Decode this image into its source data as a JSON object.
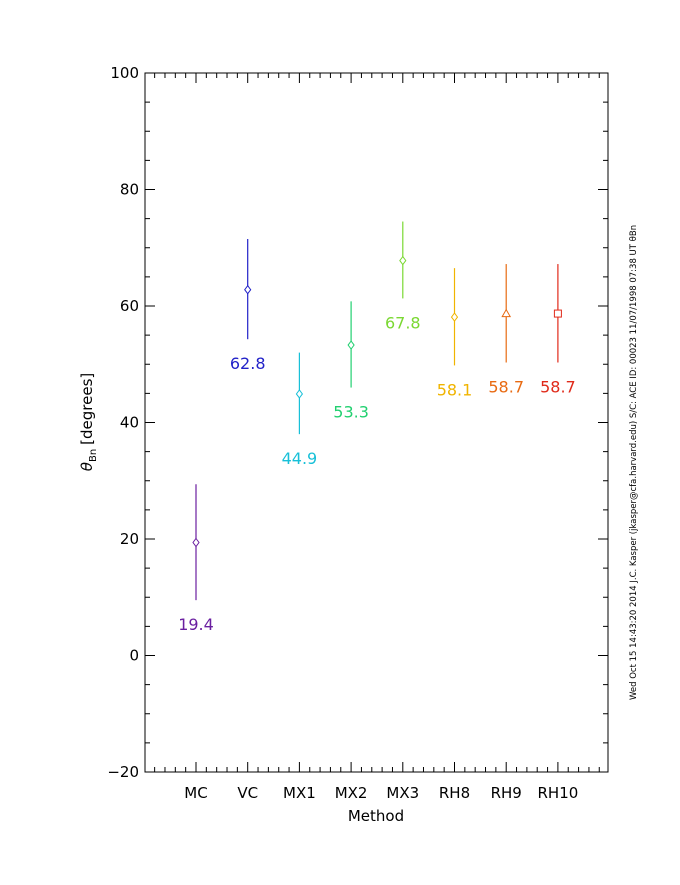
{
  "chart_data": {
    "type": "scatter",
    "xlabel": "Method",
    "ylabel_symbol": "θ",
    "ylabel_subscript": "Bn",
    "ylabel_unit": "[degrees]",
    "ylim": [
      -20,
      100
    ],
    "yticks": [
      "−20",
      "0",
      "20",
      "40",
      "60",
      "80",
      "100"
    ],
    "ytick_values": [
      -20,
      0,
      20,
      40,
      60,
      80,
      100
    ],
    "grid": false,
    "categories": [
      "MC",
      "VC",
      "MX1",
      "MX2",
      "MX3",
      "RH8",
      "RH9",
      "RH10"
    ],
    "points": [
      {
        "category": "MC",
        "value": 19.4,
        "err_low": 9.5,
        "err_high": 29.4,
        "label": "19.4",
        "color": "#6a1fa0",
        "marker": "diamond"
      },
      {
        "category": "VC",
        "value": 62.8,
        "err_low": 54.3,
        "err_high": 71.5,
        "label": "62.8",
        "color": "#2222c8",
        "marker": "diamond"
      },
      {
        "category": "MX1",
        "value": 44.9,
        "err_low": 38.0,
        "err_high": 52.0,
        "label": "44.9",
        "color": "#18c0d8",
        "marker": "diamond"
      },
      {
        "category": "MX2",
        "value": 53.3,
        "err_low": 46.0,
        "err_high": 60.8,
        "label": "53.3",
        "color": "#22d070",
        "marker": "diamond"
      },
      {
        "category": "MX3",
        "value": 67.8,
        "err_low": 61.3,
        "err_high": 74.5,
        "label": "67.8",
        "color": "#7ad832",
        "marker": "diamond"
      },
      {
        "category": "RH8",
        "value": 58.1,
        "err_low": 49.8,
        "err_high": 66.5,
        "label": "58.1",
        "color": "#f0b400",
        "marker": "diamond"
      },
      {
        "category": "RH9",
        "value": 58.7,
        "err_low": 50.3,
        "err_high": 67.2,
        "label": "58.7",
        "color": "#e86a12",
        "marker": "triangle"
      },
      {
        "category": "RH10",
        "value": 58.7,
        "err_low": 50.3,
        "err_high": 67.2,
        "label": "58.7",
        "color": "#e02a1a",
        "marker": "square"
      }
    ]
  },
  "side_note": "Wed Oct 15 14:43:20 2014  J.C. Kasper (jkasper@cfa.harvard.edu)   S/C: ACE ID: 00023 11/07/1998  07:38 UT θBn"
}
